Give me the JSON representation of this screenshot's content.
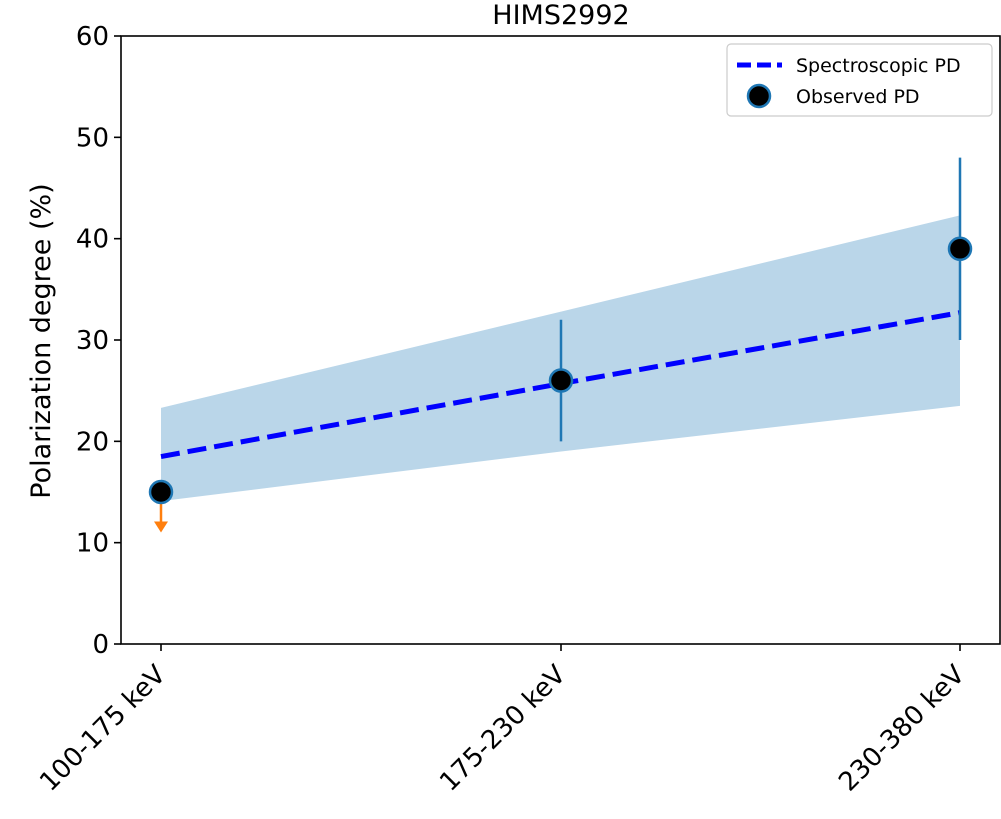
{
  "chart_data": {
    "type": "line",
    "title": "HIMS2992",
    "xlabel": "",
    "ylabel": "Polarization degree (%)",
    "ylim": [
      0,
      60
    ],
    "yticks": [
      0,
      10,
      20,
      30,
      40,
      50,
      60
    ],
    "categories": [
      "100-175 keV",
      "175-230 keV",
      "230-380 keV"
    ],
    "legend_position": "top-right",
    "grid": false,
    "series": [
      {
        "name": "Spectroscopic PD",
        "kind": "dashed-line",
        "color": "#0000ff",
        "values": [
          18.5,
          25.7,
          32.7
        ],
        "band_lower": [
          14.1,
          19.0,
          23.5
        ],
        "band_upper": [
          23.3,
          32.8,
          42.3
        ],
        "band_color": "#bad6e9"
      },
      {
        "name": "Observed PD",
        "kind": "points",
        "marker_color": "#000000",
        "edge_color": "#1f77b4",
        "values": [
          15,
          26,
          39
        ],
        "err_lower": [
          null,
          20,
          30
        ],
        "err_upper": [
          null,
          32,
          48
        ],
        "upper_limit": [
          true,
          false,
          false
        ],
        "upper_limit_arrow_to": [
          11,
          null,
          null
        ],
        "upper_limit_color": "#ff7f0e",
        "errorbar_color": "#1f77b4"
      }
    ]
  }
}
